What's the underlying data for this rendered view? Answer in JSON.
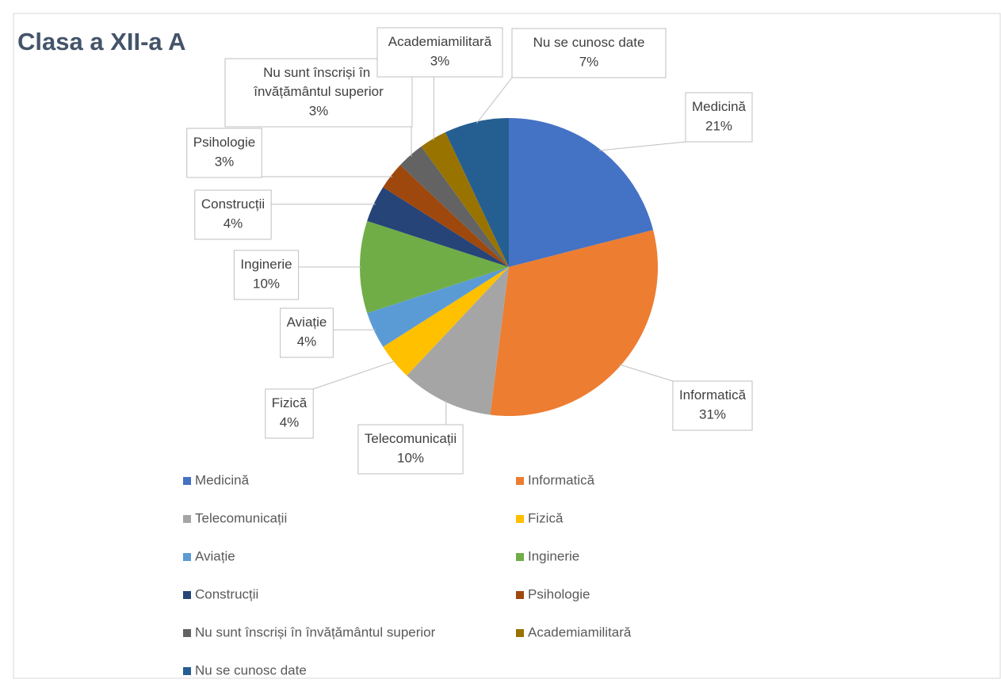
{
  "chart_data": {
    "type": "pie",
    "title": "Clasa a XII-a A",
    "categories": [
      "Medicină",
      "Informatică",
      "Telecomunicații",
      "Fizică",
      "Aviație",
      "Inginerie",
      "Construcții",
      "Psihologie",
      "Nu sunt înscriși în învățământul superior",
      "Academiamilitară",
      "Nu se cunosc date"
    ],
    "values": [
      21,
      31,
      10,
      4,
      4,
      10,
      4,
      3,
      3,
      3,
      7
    ],
    "value_labels": [
      "21%",
      "31%",
      "10%",
      "4%",
      "4%",
      "10%",
      "4%",
      "3%",
      "3%",
      "3%",
      "7%"
    ],
    "colors": [
      "#4472c4",
      "#ed7d31",
      "#a5a5a5",
      "#ffc000",
      "#5b9bd5",
      "#70ad47",
      "#264478",
      "#9e480e",
      "#636363",
      "#997300",
      "#255e91"
    ],
    "legend": "bottom"
  }
}
